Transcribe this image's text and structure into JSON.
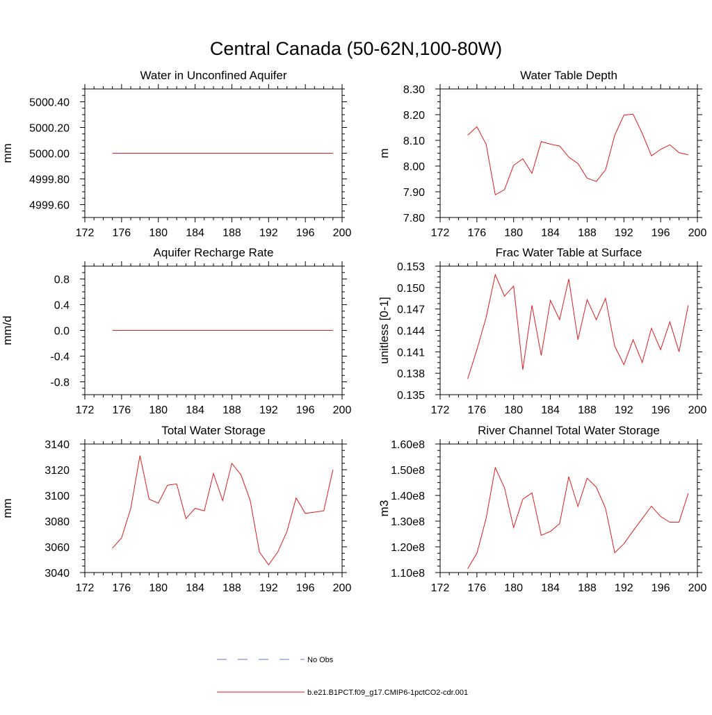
{
  "page": {
    "title": "Central Canada (50-62N,100-80W)"
  },
  "legend": {
    "placement": "bottom-center",
    "entries": [
      {
        "label": "No Obs",
        "color": "#6b74c4",
        "style": "dashed"
      },
      {
        "label": "b.e21.B1PCT.f09_g17.CMIP6-1pctCO2-cdr.001",
        "color": "#e31a1c",
        "style": "solid"
      }
    ]
  },
  "chart_data": [
    {
      "type": "line",
      "title": "Water in Unconfined Aquifer",
      "ylabel": "mm",
      "xlim": [
        172,
        200
      ],
      "ylim": [
        4999.5,
        5000.5
      ],
      "xticks": [
        172,
        176,
        180,
        184,
        188,
        192,
        196,
        200
      ],
      "xtick_labels": [
        "172",
        "176",
        "180",
        "184",
        "188",
        "192",
        "196",
        "200"
      ],
      "yticks": [
        4999.6,
        4999.8,
        5000.0,
        5000.2,
        5000.4
      ],
      "ytick_labels": [
        "4999.60",
        "4999.80",
        "5000.00",
        "5000.20",
        "5000.40"
      ],
      "series": [
        {
          "color": "#e31a1c",
          "x": [
            175,
            176,
            177,
            178,
            179,
            180,
            181,
            182,
            183,
            184,
            185,
            186,
            187,
            188,
            189,
            190,
            191,
            192,
            193,
            194,
            195,
            196,
            197,
            198,
            199
          ],
          "y": [
            5000,
            5000,
            5000,
            5000,
            5000,
            5000,
            5000,
            5000,
            5000,
            5000,
            5000,
            5000,
            5000,
            5000,
            5000,
            5000,
            5000,
            5000,
            5000,
            5000,
            5000,
            5000,
            5000,
            5000,
            5000
          ]
        }
      ]
    },
    {
      "type": "line",
      "title": "Water Table Depth",
      "ylabel": "m",
      "xlim": [
        172,
        200
      ],
      "ylim": [
        7.8,
        8.3
      ],
      "xticks": [
        172,
        176,
        180,
        184,
        188,
        192,
        196,
        200
      ],
      "xtick_labels": [
        "172",
        "176",
        "180",
        "184",
        "188",
        "192",
        "196",
        "200"
      ],
      "yticks": [
        7.8,
        7.9,
        8.0,
        8.1,
        8.2,
        8.3
      ],
      "ytick_labels": [
        "7.80",
        "7.90",
        "8.00",
        "8.10",
        "8.20",
        "8.30"
      ],
      "series": [
        {
          "color": "#e31a1c",
          "x": [
            175,
            176,
            177,
            178,
            179,
            180,
            181,
            182,
            183,
            184,
            185,
            186,
            187,
            188,
            189,
            190,
            191,
            192,
            193,
            194,
            195,
            196,
            197,
            198,
            199
          ],
          "y": [
            8.12,
            8.153,
            8.085,
            7.888,
            7.908,
            8.003,
            8.028,
            7.972,
            8.095,
            8.085,
            8.078,
            8.035,
            8.01,
            7.953,
            7.94,
            7.985,
            8.12,
            8.198,
            8.202,
            8.127,
            8.04,
            8.065,
            8.083,
            8.052,
            8.044
          ]
        }
      ]
    },
    {
      "type": "line",
      "title": "Aquifer Recharge Rate",
      "ylabel": "mm/d",
      "xlim": [
        172,
        200
      ],
      "ylim": [
        -1.0,
        1.0
      ],
      "xticks": [
        172,
        176,
        180,
        184,
        188,
        192,
        196,
        200
      ],
      "xtick_labels": [
        "172",
        "176",
        "180",
        "184",
        "188",
        "192",
        "196",
        "200"
      ],
      "yticks": [
        -0.8,
        -0.4,
        0.0,
        0.4,
        0.8
      ],
      "ytick_labels": [
        "-0.8",
        "-0.4",
        "0.0",
        "0.4",
        "0.8"
      ],
      "series": [
        {
          "color": "#e31a1c",
          "x": [
            175,
            176,
            177,
            178,
            179,
            180,
            181,
            182,
            183,
            184,
            185,
            186,
            187,
            188,
            189,
            190,
            191,
            192,
            193,
            194,
            195,
            196,
            197,
            198,
            199
          ],
          "y": [
            0,
            0,
            0,
            0,
            0,
            0,
            0,
            0,
            0,
            0,
            0,
            0,
            0,
            0,
            0,
            0,
            0,
            0,
            0,
            0,
            0,
            0,
            0,
            0,
            0
          ]
        }
      ]
    },
    {
      "type": "line",
      "title": "Frac Water Table at Surface",
      "ylabel": "unitless [0-1]",
      "xlim": [
        172,
        200
      ],
      "ylim": [
        0.135,
        0.153
      ],
      "xticks": [
        172,
        176,
        180,
        184,
        188,
        192,
        196,
        200
      ],
      "xtick_labels": [
        "172",
        "176",
        "180",
        "184",
        "188",
        "192",
        "196",
        "200"
      ],
      "yticks": [
        0.135,
        0.138,
        0.141,
        0.144,
        0.147,
        0.15,
        0.153
      ],
      "ytick_labels": [
        "0.135",
        "0.138",
        "0.141",
        "0.144",
        "0.147",
        "0.150",
        "0.153"
      ],
      "series": [
        {
          "color": "#e31a1c",
          "x": [
            175,
            176,
            177,
            178,
            179,
            180,
            181,
            182,
            183,
            184,
            185,
            186,
            187,
            188,
            189,
            190,
            191,
            192,
            193,
            194,
            195,
            196,
            197,
            198,
            199
          ],
          "y": [
            0.1372,
            0.1413,
            0.1458,
            0.1518,
            0.1488,
            0.1502,
            0.1385,
            0.1475,
            0.1405,
            0.1482,
            0.1455,
            0.1512,
            0.1427,
            0.1483,
            0.1455,
            0.1485,
            0.1418,
            0.1392,
            0.1427,
            0.1395,
            0.1443,
            0.1413,
            0.1452,
            0.141,
            0.1475
          ]
        }
      ]
    },
    {
      "type": "line",
      "title": "Total Water Storage",
      "ylabel": "mm",
      "xlim": [
        172,
        200
      ],
      "ylim": [
        3040,
        3140
      ],
      "xticks": [
        172,
        176,
        180,
        184,
        188,
        192,
        196,
        200
      ],
      "xtick_labels": [
        "172",
        "176",
        "180",
        "184",
        "188",
        "192",
        "196",
        "200"
      ],
      "yticks": [
        3040,
        3060,
        3080,
        3100,
        3120,
        3140
      ],
      "ytick_labels": [
        "3040",
        "3060",
        "3080",
        "3100",
        "3120",
        "3140"
      ],
      "series": [
        {
          "color": "#e31a1c",
          "x": [
            175,
            176,
            177,
            178,
            179,
            180,
            181,
            182,
            183,
            184,
            185,
            186,
            187,
            188,
            189,
            190,
            191,
            192,
            193,
            194,
            195,
            196,
            197,
            198,
            199
          ],
          "y": [
            3059,
            3067,
            3090,
            3131,
            3097,
            3094,
            3108,
            3109,
            3082,
            3090,
            3088,
            3117,
            3096,
            3125,
            3116,
            3096,
            3056,
            3046,
            3056,
            3072,
            3098,
            3086,
            3087,
            3088,
            3120
          ]
        }
      ]
    },
    {
      "type": "line",
      "title": "River Channel Total Water Storage",
      "ylabel": "m3",
      "xlim": [
        172,
        200
      ],
      "ylim": [
        110000000,
        160000000
      ],
      "xticks": [
        172,
        176,
        180,
        184,
        188,
        192,
        196,
        200
      ],
      "xtick_labels": [
        "172",
        "176",
        "180",
        "184",
        "188",
        "192",
        "196",
        "200"
      ],
      "yticks": [
        110000000,
        120000000,
        130000000,
        140000000,
        150000000,
        160000000
      ],
      "ytick_labels": [
        "1.10e8",
        "1.20e8",
        "1.30e8",
        "1.40e8",
        "1.50e8",
        "1.60e8"
      ],
      "series": [
        {
          "color": "#e31a1c",
          "x": [
            175,
            176,
            177,
            178,
            179,
            180,
            181,
            182,
            183,
            184,
            185,
            186,
            187,
            188,
            189,
            190,
            191,
            192,
            193,
            194,
            195,
            196,
            197,
            198,
            199
          ],
          "y": [
            111500000,
            117500000,
            131000000,
            150800000,
            143000000,
            127500000,
            138500000,
            141000000,
            124500000,
            126000000,
            129000000,
            147300000,
            135700000,
            146700000,
            143200000,
            135000000,
            117700000,
            121200000,
            126200000,
            131000000,
            135800000,
            131800000,
            129600000,
            129600000,
            140800000
          ]
        }
      ]
    }
  ]
}
